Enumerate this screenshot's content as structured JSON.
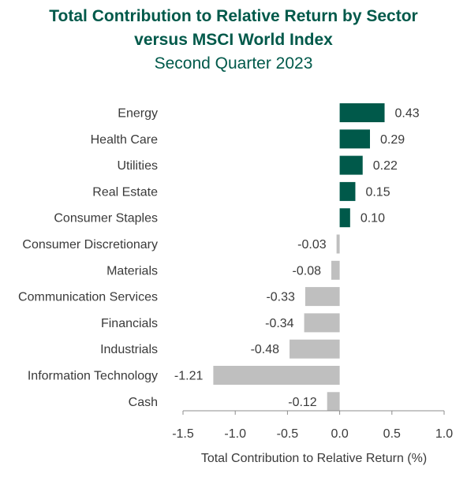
{
  "chart_data": {
    "type": "bar",
    "orientation": "horizontal",
    "title": "Total Contribution to Relative Return by Sector",
    "title_line2": "versus MSCI World Index",
    "subtitle": "Second Quarter 2023",
    "xlabel": "Total Contribution to Relative Return (%)",
    "ylabel": "",
    "xlim": [
      -1.5,
      1.0
    ],
    "xticks": [
      "-1.5",
      "-1.0",
      "-0.5",
      "0.0",
      "0.5",
      "1.0"
    ],
    "xtick_values": [
      -1.5,
      -1.0,
      -0.5,
      0.0,
      0.5,
      1.0
    ],
    "grid": false,
    "legend": "none",
    "categories": [
      "Energy",
      "Health Care",
      "Utilities",
      "Real Estate",
      "Consumer Staples",
      "Consumer Discretionary",
      "Materials",
      "Communication Services",
      "Financials",
      "Industrials",
      "Information Technology",
      "Cash"
    ],
    "values": [
      0.43,
      0.29,
      0.22,
      0.15,
      0.1,
      -0.03,
      -0.08,
      -0.33,
      -0.34,
      -0.48,
      -1.21,
      -0.12
    ],
    "value_labels": [
      "0.43",
      "0.29",
      "0.22",
      "0.15",
      "0.10",
      "-0.03",
      "-0.08",
      "-0.33",
      "-0.34",
      "-0.48",
      "-1.21",
      "-0.12"
    ],
    "colors": {
      "positive": "#00594a",
      "negative": "#bfbfbf",
      "title": "#00594a",
      "axis": "#8c8c8c",
      "text": "#3a3a3a"
    }
  }
}
